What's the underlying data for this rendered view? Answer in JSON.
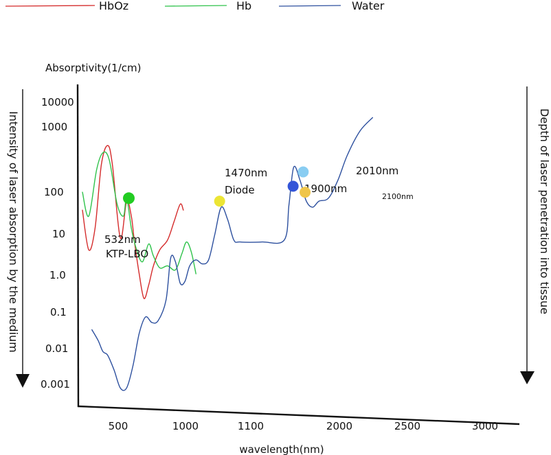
{
  "chart_data": {
    "type": "line",
    "ylabel": "Absorptivity(1/cm)",
    "xlabel": "wavelength(nm)",
    "left_axis_label": "Intensity of laser absorption by the medium",
    "right_axis_label": "Depth of laser penetration into tissue",
    "y_scale": "log",
    "x_ticks": [
      "500",
      "1000",
      "1100",
      "2000",
      "2500",
      "3000"
    ],
    "y_ticks": [
      "10000",
      "1000",
      "100",
      "10",
      "1.0",
      "0.1",
      "0.01",
      "0.001"
    ],
    "legend": {
      "placement": "top-left"
    },
    "series": [
      {
        "name": "HbOz",
        "color": "#d42a2a",
        "points": [
          [
            300,
            1.4
          ],
          [
            320,
            0.6
          ],
          [
            340,
            1.1
          ],
          [
            360,
            2.2
          ],
          [
            380,
            2.6
          ],
          [
            395,
            2.2
          ],
          [
            420,
            0.9
          ],
          [
            440,
            1.55
          ],
          [
            455,
            1.3
          ],
          [
            465,
            0.8
          ],
          [
            480,
            0.0
          ],
          [
            495,
            -0.65
          ],
          [
            510,
            -0.3
          ],
          [
            525,
            0.2
          ],
          [
            545,
            0.6
          ],
          [
            570,
            0.85
          ],
          [
            590,
            1.2
          ],
          [
            610,
            1.5
          ],
          [
            620,
            1.4
          ]
        ]
      },
      {
        "name": "Hb",
        "color": "#2ec24a",
        "points": [
          [
            300,
            1.7
          ],
          [
            320,
            1.3
          ],
          [
            345,
            2.1
          ],
          [
            365,
            2.45
          ],
          [
            385,
            2.3
          ],
          [
            410,
            1.5
          ],
          [
            430,
            1.3
          ],
          [
            440,
            1.6
          ],
          [
            455,
            1.1
          ],
          [
            470,
            0.65
          ],
          [
            490,
            0.3
          ],
          [
            510,
            0.75
          ],
          [
            525,
            0.45
          ],
          [
            545,
            0.15
          ],
          [
            570,
            0.2
          ],
          [
            595,
            0.1
          ],
          [
            615,
            0.5
          ],
          [
            630,
            0.8
          ],
          [
            645,
            0.55
          ],
          [
            660,
            0.0
          ]
        ]
      },
      {
        "name": "Water",
        "color": "#2c4f9e",
        "points": [
          [
            330,
            -1.5
          ],
          [
            350,
            -1.8
          ],
          [
            365,
            -2.1
          ],
          [
            380,
            -2.2
          ],
          [
            400,
            -2.6
          ],
          [
            420,
            -3.1
          ],
          [
            440,
            -3.1
          ],
          [
            460,
            -2.5
          ],
          [
            480,
            -1.6
          ],
          [
            500,
            -1.15
          ],
          [
            520,
            -1.3
          ],
          [
            540,
            -1.25
          ],
          [
            565,
            -0.7
          ],
          [
            580,
            0.4
          ],
          [
            595,
            0.3
          ],
          [
            610,
            -0.25
          ],
          [
            625,
            -0.2
          ],
          [
            640,
            0.2
          ],
          [
            660,
            0.35
          ],
          [
            680,
            0.25
          ],
          [
            700,
            0.35
          ],
          [
            720,
            1.0
          ],
          [
            740,
            1.45
          ],
          [
            760,
            1.25
          ],
          [
            780,
            0.85
          ],
          [
            800,
            0.8
          ],
          [
            870,
            0.8
          ],
          [
            940,
            0.85
          ],
          [
            955,
            1.5
          ],
          [
            970,
            2.15
          ],
          [
            990,
            1.9
          ],
          [
            1010,
            1.55
          ],
          [
            1030,
            1.45
          ],
          [
            1050,
            1.55
          ],
          [
            1080,
            1.6
          ],
          [
            1110,
            1.9
          ],
          [
            1140,
            2.4
          ],
          [
            1180,
            2.9
          ],
          [
            1220,
            3.35
          ]
        ]
      }
    ],
    "annotations": [
      {
        "label": "532nm",
        "sublabel": "KTP-LBO",
        "color": "#22cc22",
        "x": 447,
        "y": 1.6
      },
      {
        "label": "1470nm",
        "sublabel": "Diode",
        "color": "#ece534",
        "x": 735,
        "y": 1.55
      },
      {
        "label": "1900nm",
        "sublabel": "",
        "color": "#3355d8",
        "x": 968,
        "y": 1.8
      },
      {
        "label": "2010nm",
        "sublabel": "",
        "color": "#89cdf2",
        "x": 1000,
        "y": 2.05
      },
      {
        "label": "2100nm",
        "sublabel": "",
        "color": "#efc54a",
        "x": 1006,
        "y": 1.7
      }
    ]
  }
}
